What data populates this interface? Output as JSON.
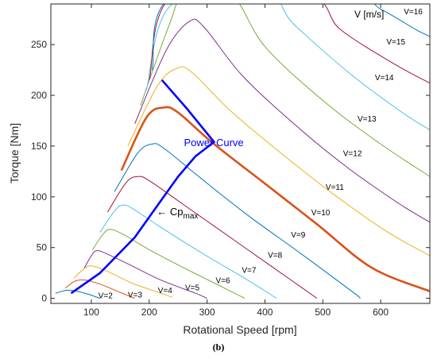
{
  "chart_data": {
    "type": "line",
    "xlabel": "Rotational Speed [rpm]",
    "ylabel": "Torque [Nm]",
    "xlim": [
      30,
      685
    ],
    "ylim": [
      -5,
      290
    ],
    "xticks": [
      100,
      200,
      300,
      400,
      500,
      600
    ],
    "yticks": [
      0,
      50,
      100,
      150,
      200,
      250
    ],
    "grid": false,
    "legend_title": "V [m/s]",
    "highlighted_series": "V=10",
    "series": [
      {
        "name": "V=2",
        "color": "#0072bd",
        "points": [
          [
            38,
            5
          ],
          [
            58,
            8
          ],
          [
            75,
            7
          ],
          [
            95,
            4
          ],
          [
            115,
            0
          ]
        ]
      },
      {
        "name": "V=3",
        "color": "#d95319",
        "points": [
          [
            55,
            10
          ],
          [
            72,
            17
          ],
          [
            90,
            18
          ],
          [
            115,
            14
          ],
          [
            145,
            7
          ],
          [
            175,
            0
          ]
        ]
      },
      {
        "name": "V=4",
        "color": "#edb120",
        "points": [
          [
            70,
            20
          ],
          [
            85,
            28
          ],
          [
            100,
            32
          ],
          [
            130,
            26
          ],
          [
            170,
            15
          ],
          [
            220,
            5
          ],
          [
            240,
            1
          ]
        ]
      },
      {
        "name": "V=5",
        "color": "#7e2f8e",
        "points": [
          [
            88,
            30
          ],
          [
            100,
            42
          ],
          [
            110,
            47
          ],
          [
            130,
            43
          ],
          [
            170,
            32
          ],
          [
            220,
            18
          ],
          [
            280,
            5
          ],
          [
            300,
            0
          ]
        ]
      },
      {
        "name": "V=6",
        "color": "#77ac30",
        "points": [
          [
            102,
            48
          ],
          [
            120,
            63
          ],
          [
            132,
            68
          ],
          [
            155,
            63
          ],
          [
            200,
            48
          ],
          [
            260,
            30
          ],
          [
            320,
            13
          ],
          [
            365,
            0
          ]
        ]
      },
      {
        "name": "V=7",
        "color": "#4dbeee",
        "points": [
          [
            115,
            65
          ],
          [
            140,
            86
          ],
          [
            155,
            92
          ],
          [
            175,
            87
          ],
          [
            220,
            70
          ],
          [
            290,
            45
          ],
          [
            370,
            18
          ],
          [
            420,
            0
          ]
        ]
      },
      {
        "name": "V=8",
        "color": "#a2142f",
        "points": [
          [
            128,
            85
          ],
          [
            160,
            114
          ],
          [
            180,
            120
          ],
          [
            200,
            116
          ],
          [
            260,
            92
          ],
          [
            340,
            60
          ],
          [
            420,
            28
          ],
          [
            490,
            0
          ]
        ]
      },
      {
        "name": "V=9",
        "color": "#0072bd",
        "points": [
          [
            140,
            105
          ],
          [
            180,
            143
          ],
          [
            205,
            152
          ],
          [
            225,
            148
          ],
          [
            290,
            118
          ],
          [
            370,
            82
          ],
          [
            460,
            45
          ],
          [
            550,
            7
          ],
          [
            565,
            0
          ]
        ]
      },
      {
        "name": "V=10",
        "color": "#d95319",
        "points": [
          [
            152,
            126
          ],
          [
            195,
            178
          ],
          [
            225,
            188
          ],
          [
            250,
            183
          ],
          [
            310,
            153
          ],
          [
            400,
            113
          ],
          [
            490,
            73
          ],
          [
            585,
            30
          ],
          [
            685,
            7
          ]
        ]
      },
      {
        "name": "V=11",
        "color": "#edb120",
        "points": [
          [
            163,
            150
          ],
          [
            215,
            210
          ],
          [
            250,
            227
          ],
          [
            275,
            222
          ],
          [
            340,
            185
          ],
          [
            430,
            142
          ],
          [
            520,
            102
          ],
          [
            610,
            66
          ],
          [
            685,
            42
          ]
        ]
      },
      {
        "name": "V=12",
        "color": "#7e2f8e",
        "points": [
          [
            175,
            172
          ],
          [
            230,
            245
          ],
          [
            270,
            273
          ],
          [
            295,
            267
          ],
          [
            360,
            220
          ],
          [
            450,
            172
          ],
          [
            540,
            130
          ],
          [
            630,
            94
          ],
          [
            685,
            75
          ]
        ]
      },
      {
        "name": "V=13",
        "color": "#77ac30",
        "points": [
          [
            185,
            190
          ],
          [
            235,
            270
          ],
          [
            262,
            300
          ],
          [
            340,
            300
          ],
          [
            400,
            248
          ],
          [
            500,
            195
          ],
          [
            600,
            152
          ],
          [
            685,
            120
          ]
        ]
      },
      {
        "name": "V=14",
        "color": "#4dbeee",
        "points": [
          [
            195,
            205
          ],
          [
            240,
            290
          ],
          [
            400,
            300
          ],
          [
            450,
            270
          ],
          [
            550,
            220
          ],
          [
            640,
            182
          ],
          [
            685,
            166
          ]
        ]
      },
      {
        "name": "V=15",
        "color": "#a2142f",
        "points": [
          [
            200,
            215
          ],
          [
            245,
            300
          ],
          [
            470,
            300
          ],
          [
            530,
            265
          ],
          [
            620,
            232
          ],
          [
            685,
            212
          ]
        ]
      },
      {
        "name": "V=16",
        "color": "#0072bd",
        "points": [
          [
            205,
            225
          ],
          [
            248,
            300
          ],
          [
            540,
            300
          ],
          [
            600,
            285
          ],
          [
            660,
            265
          ],
          [
            685,
            258
          ]
        ]
      }
    ],
    "power_curve": {
      "name": "Power Curve",
      "color": "#0000ff",
      "points": [
        [
          65,
          5
        ],
        [
          115,
          25
        ],
        [
          175,
          60
        ],
        [
          215,
          92
        ],
        [
          250,
          120
        ],
        [
          280,
          140
        ],
        [
          312,
          154
        ],
        [
          265,
          187
        ],
        [
          222,
          215
        ]
      ]
    },
    "annotations": [
      {
        "text": "Power Curve",
        "x": 260,
        "y": 150,
        "color": "#0000ff"
      },
      {
        "text": "← Cp",
        "sub": "max",
        "x": 213,
        "y": 82,
        "color": "#000000"
      }
    ],
    "curve_labels": [
      {
        "text": "V=2",
        "x": 112,
        "y": 0
      },
      {
        "text": "V=3",
        "x": 163,
        "y": 1
      },
      {
        "text": "V=4",
        "x": 215,
        "y": 5
      },
      {
        "text": "V=5",
        "x": 262,
        "y": 8
      },
      {
        "text": "V=6",
        "x": 315,
        "y": 15
      },
      {
        "text": "V=7",
        "x": 360,
        "y": 25
      },
      {
        "text": "V=8",
        "x": 405,
        "y": 40
      },
      {
        "text": "V=9",
        "x": 445,
        "y": 60
      },
      {
        "text": "V=10",
        "x": 480,
        "y": 82
      },
      {
        "text": "V=11",
        "x": 505,
        "y": 107
      },
      {
        "text": "V=12",
        "x": 535,
        "y": 140
      },
      {
        "text": "V=13",
        "x": 560,
        "y": 174
      },
      {
        "text": "V=14",
        "x": 590,
        "y": 215
      },
      {
        "text": "V=15",
        "x": 610,
        "y": 250
      },
      {
        "text": "V=16",
        "x": 640,
        "y": 280
      }
    ]
  },
  "figure_caption": "(b)"
}
